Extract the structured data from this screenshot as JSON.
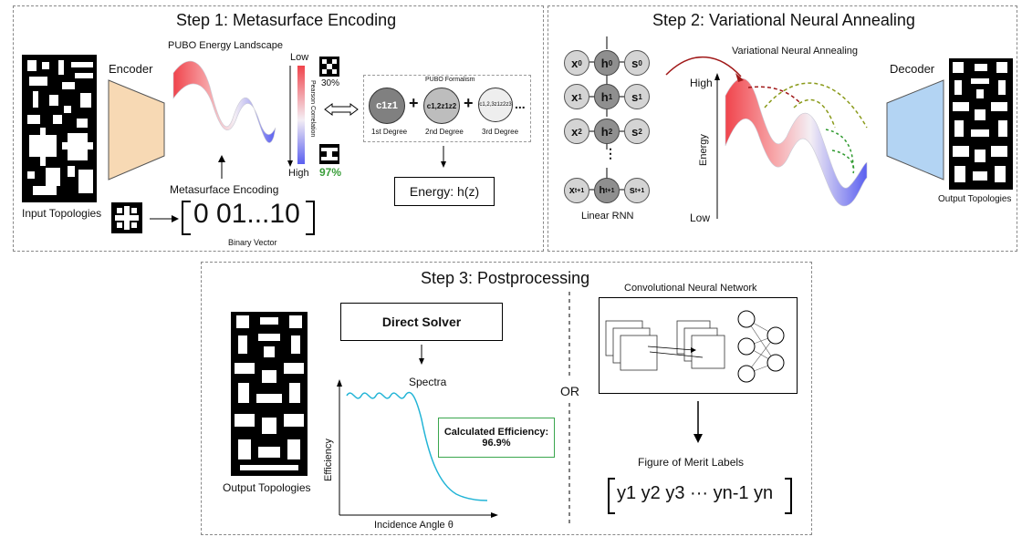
{
  "step1": {
    "title": "Step 1: Metasurface Encoding",
    "input_topologies": "Input Topologies",
    "encoder": "Encoder",
    "landscape_title": "PUBO Energy Landscape",
    "metasurface_encoding": "Metasurface Encoding",
    "binary_vector": "0 01...10",
    "binary_vector_label": "Binary Vector",
    "low": "Low",
    "high": "High",
    "pearson": "Pearson Correlation",
    "pct_low": "30%",
    "pct_high": "97%",
    "pubo_formalism": "PUBO Formalism",
    "circle1": "c1z1",
    "circle2": "c1,2z1z2",
    "circle3": "c1,2,3z1z2z3",
    "degree1": "1st Degree",
    "degree2": "2nd Degree",
    "degree3": "3rd Degree",
    "plus": "+",
    "ellipsis": "...",
    "energy": "Energy: h(z)"
  },
  "step2": {
    "title": "Step 2: Variational Neural Annealing",
    "vna_label": "Variational Neural Annealing",
    "high": "High",
    "low": "Low",
    "energy_axis": "Energy",
    "decoder": "Decoder",
    "output_topologies": "Output Topologies",
    "linear_rnn": "Linear RNN",
    "rnn_dots": "⋮",
    "rnn_rows": [
      {
        "x": "x",
        "xs": "0",
        "h": "h",
        "hs": "0",
        "s": "s",
        "ss": "0"
      },
      {
        "x": "x",
        "xs": "1",
        "h": "h",
        "hs": "1",
        "s": "s",
        "ss": "1"
      },
      {
        "x": "x",
        "xs": "2",
        "h": "h",
        "hs": "2",
        "s": "s",
        "ss": "2"
      },
      {
        "x": "x",
        "xs": "t+1",
        "h": "h",
        "hs": "t+1",
        "s": "s",
        "ss": "t+1"
      }
    ]
  },
  "step3": {
    "title": "Step 3: Postprocessing",
    "output_topologies": "Output Topologies",
    "direct_solver": "Direct Solver",
    "spectra": "Spectra",
    "efficiency_axis": "Efficiency",
    "incidence_angle": "Incidence Angle θ",
    "calc_efficiency": "Calculated Efficiency:",
    "calc_value": "96.9%",
    "or": "OR",
    "cnn": "Convolutional Neural Network",
    "fom": "Figure of Merit Labels",
    "labels_seq": "y1 y2 y3 ··· yn-1 yn"
  },
  "colors": {
    "encoder_fill": "#f7d9b4",
    "decoder_fill": "#b3d4f3",
    "high_energy": "#f0444c",
    "low_energy": "#5a5ff0",
    "green_box": "#3aa64d",
    "spectrum_line": "#22b4d6",
    "green_text": "#3a9e3a",
    "red_arrow": "#a01818",
    "olive_arc": "#8a9a1a",
    "green_arc": "#2f9a2f"
  }
}
